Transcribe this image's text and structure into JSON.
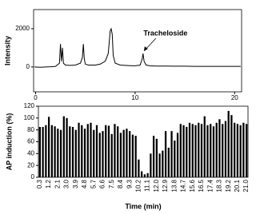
{
  "chart_data": [
    {
      "type": "line",
      "ylabel": "Intensity",
      "annotations": [
        "Tracheloside"
      ],
      "color": "#000000",
      "x": [
        -0.1,
        0.5,
        1,
        1.5,
        2,
        2.4,
        2.5,
        2.6,
        2.7,
        2.8,
        3.0,
        3.5,
        4,
        4.5,
        4.7,
        4.8,
        4.9,
        5.0,
        5.3,
        6,
        6.5,
        7,
        7.3,
        7.5,
        7.6,
        7.7,
        7.8,
        8.0,
        8.5,
        9,
        9.5,
        10,
        10.5,
        10.7,
        10.8,
        10.9,
        11.1,
        11.5,
        12,
        13,
        14,
        15,
        16,
        17,
        18,
        19,
        20,
        20.6
      ],
      "values": [
        0,
        -20,
        0,
        10,
        30,
        200,
        1200,
        300,
        1000,
        200,
        100,
        80,
        100,
        200,
        500,
        1200,
        400,
        150,
        100,
        100,
        150,
        300,
        700,
        1900,
        2000,
        1700,
        600,
        200,
        100,
        80,
        70,
        60,
        100,
        400,
        700,
        300,
        100,
        60,
        50,
        50,
        40,
        40,
        30,
        30,
        30,
        30,
        30,
        30
      ],
      "xlim": [
        -0.2,
        20.7
      ],
      "xticks": [
        0,
        10,
        20
      ],
      "ylim": [
        -1300,
        3000
      ],
      "yticks": [
        0,
        2000
      ]
    },
    {
      "type": "bar",
      "ylabel": "AP induction (%)",
      "xlabel": "Time  (min)",
      "color": "#000000",
      "categories": [
        "0.3",
        null,
        null,
        "1.2",
        null,
        null,
        "2.1",
        null,
        null,
        "3.0",
        null,
        null,
        "3.9",
        null,
        null,
        "4.8",
        null,
        null,
        "5.7",
        null,
        null,
        "6.6",
        null,
        null,
        "7.5",
        null,
        null,
        "8.4",
        null,
        null,
        "9.3",
        null,
        null,
        "10.2",
        null,
        null,
        "11.1",
        null,
        null,
        "12.0",
        null,
        null,
        "12.9",
        null,
        null,
        "13.8",
        null,
        null,
        "14.7",
        null,
        null,
        "15.6",
        null,
        null,
        "16.5",
        null,
        null,
        "17.4",
        null,
        null,
        "18.3",
        null,
        null,
        "19.2",
        null,
        null,
        "20.1",
        null,
        null,
        "21.0"
      ],
      "values": [
        85,
        85,
        88,
        102,
        88,
        86,
        82,
        80,
        103,
        100,
        86,
        85,
        80,
        92,
        88,
        82,
        90,
        92,
        80,
        88,
        75,
        78,
        88,
        87,
        73,
        90,
        86,
        75,
        80,
        82,
        78,
        72,
        70,
        30,
        10,
        5,
        7,
        40,
        70,
        65,
        40,
        45,
        78,
        50,
        78,
        62,
        75,
        90,
        88,
        85,
        92,
        90,
        88,
        92,
        90,
        103,
        88,
        90,
        86,
        92,
        98,
        90,
        95,
        112,
        105,
        92,
        90,
        88,
        92,
        90
      ],
      "ylim": [
        0,
        120
      ],
      "yticks": [
        0,
        20,
        40,
        60,
        80,
        100,
        120
      ]
    }
  ]
}
